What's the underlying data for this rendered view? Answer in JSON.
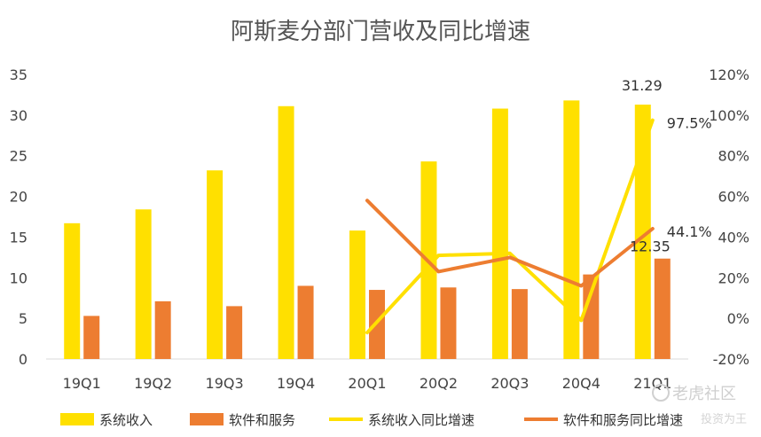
{
  "chart_data": {
    "type": "bar+line",
    "title": "阿斯麦分部门营收及同比增速",
    "categories": [
      "19Q1",
      "19Q2",
      "19Q3",
      "19Q4",
      "20Q1",
      "20Q2",
      "20Q3",
      "20Q4",
      "21Q1"
    ],
    "left_axis": {
      "ylim": [
        0,
        35
      ],
      "ticks": [
        "0",
        "5",
        "10",
        "15",
        "20",
        "25",
        "30",
        "35"
      ]
    },
    "right_axis": {
      "ylim": [
        -20,
        120
      ],
      "ticks": [
        "-20%",
        "0%",
        "20%",
        "40%",
        "60%",
        "80%",
        "100%",
        "120%"
      ]
    },
    "bar_series": [
      {
        "name": "系统收入",
        "color": "#FFE000",
        "values": [
          16.7,
          18.4,
          23.2,
          31.1,
          15.8,
          24.3,
          30.8,
          31.8,
          31.29
        ]
      },
      {
        "name": "软件和服务",
        "color": "#ED7D31",
        "values": [
          5.3,
          7.1,
          6.5,
          9.0,
          8.5,
          8.8,
          8.6,
          10.4,
          12.35
        ]
      }
    ],
    "line_series": [
      {
        "name": "系统收入同比增速",
        "color": "#FFE000",
        "values": [
          null,
          null,
          null,
          null,
          -7,
          31,
          32,
          -1,
          97.5
        ]
      },
      {
        "name": "软件和服务同比增速",
        "color": "#ED7D31",
        "values": [
          null,
          null,
          null,
          null,
          58,
          23,
          30,
          16,
          44.1
        ]
      }
    ],
    "data_labels": [
      {
        "series": "系统收入",
        "index": 8,
        "text": "31.29"
      },
      {
        "series": "软件和服务",
        "index": 8,
        "text": "12.35"
      },
      {
        "series": "系统收入同比增速",
        "index": 8,
        "text": "97.5%"
      },
      {
        "series": "软件和服务同比增速",
        "index": 8,
        "text": "44.1%"
      }
    ],
    "legend_position": "bottom",
    "grid": false
  },
  "watermark": {
    "brand": "老虎社区",
    "sub": "投资为王"
  }
}
